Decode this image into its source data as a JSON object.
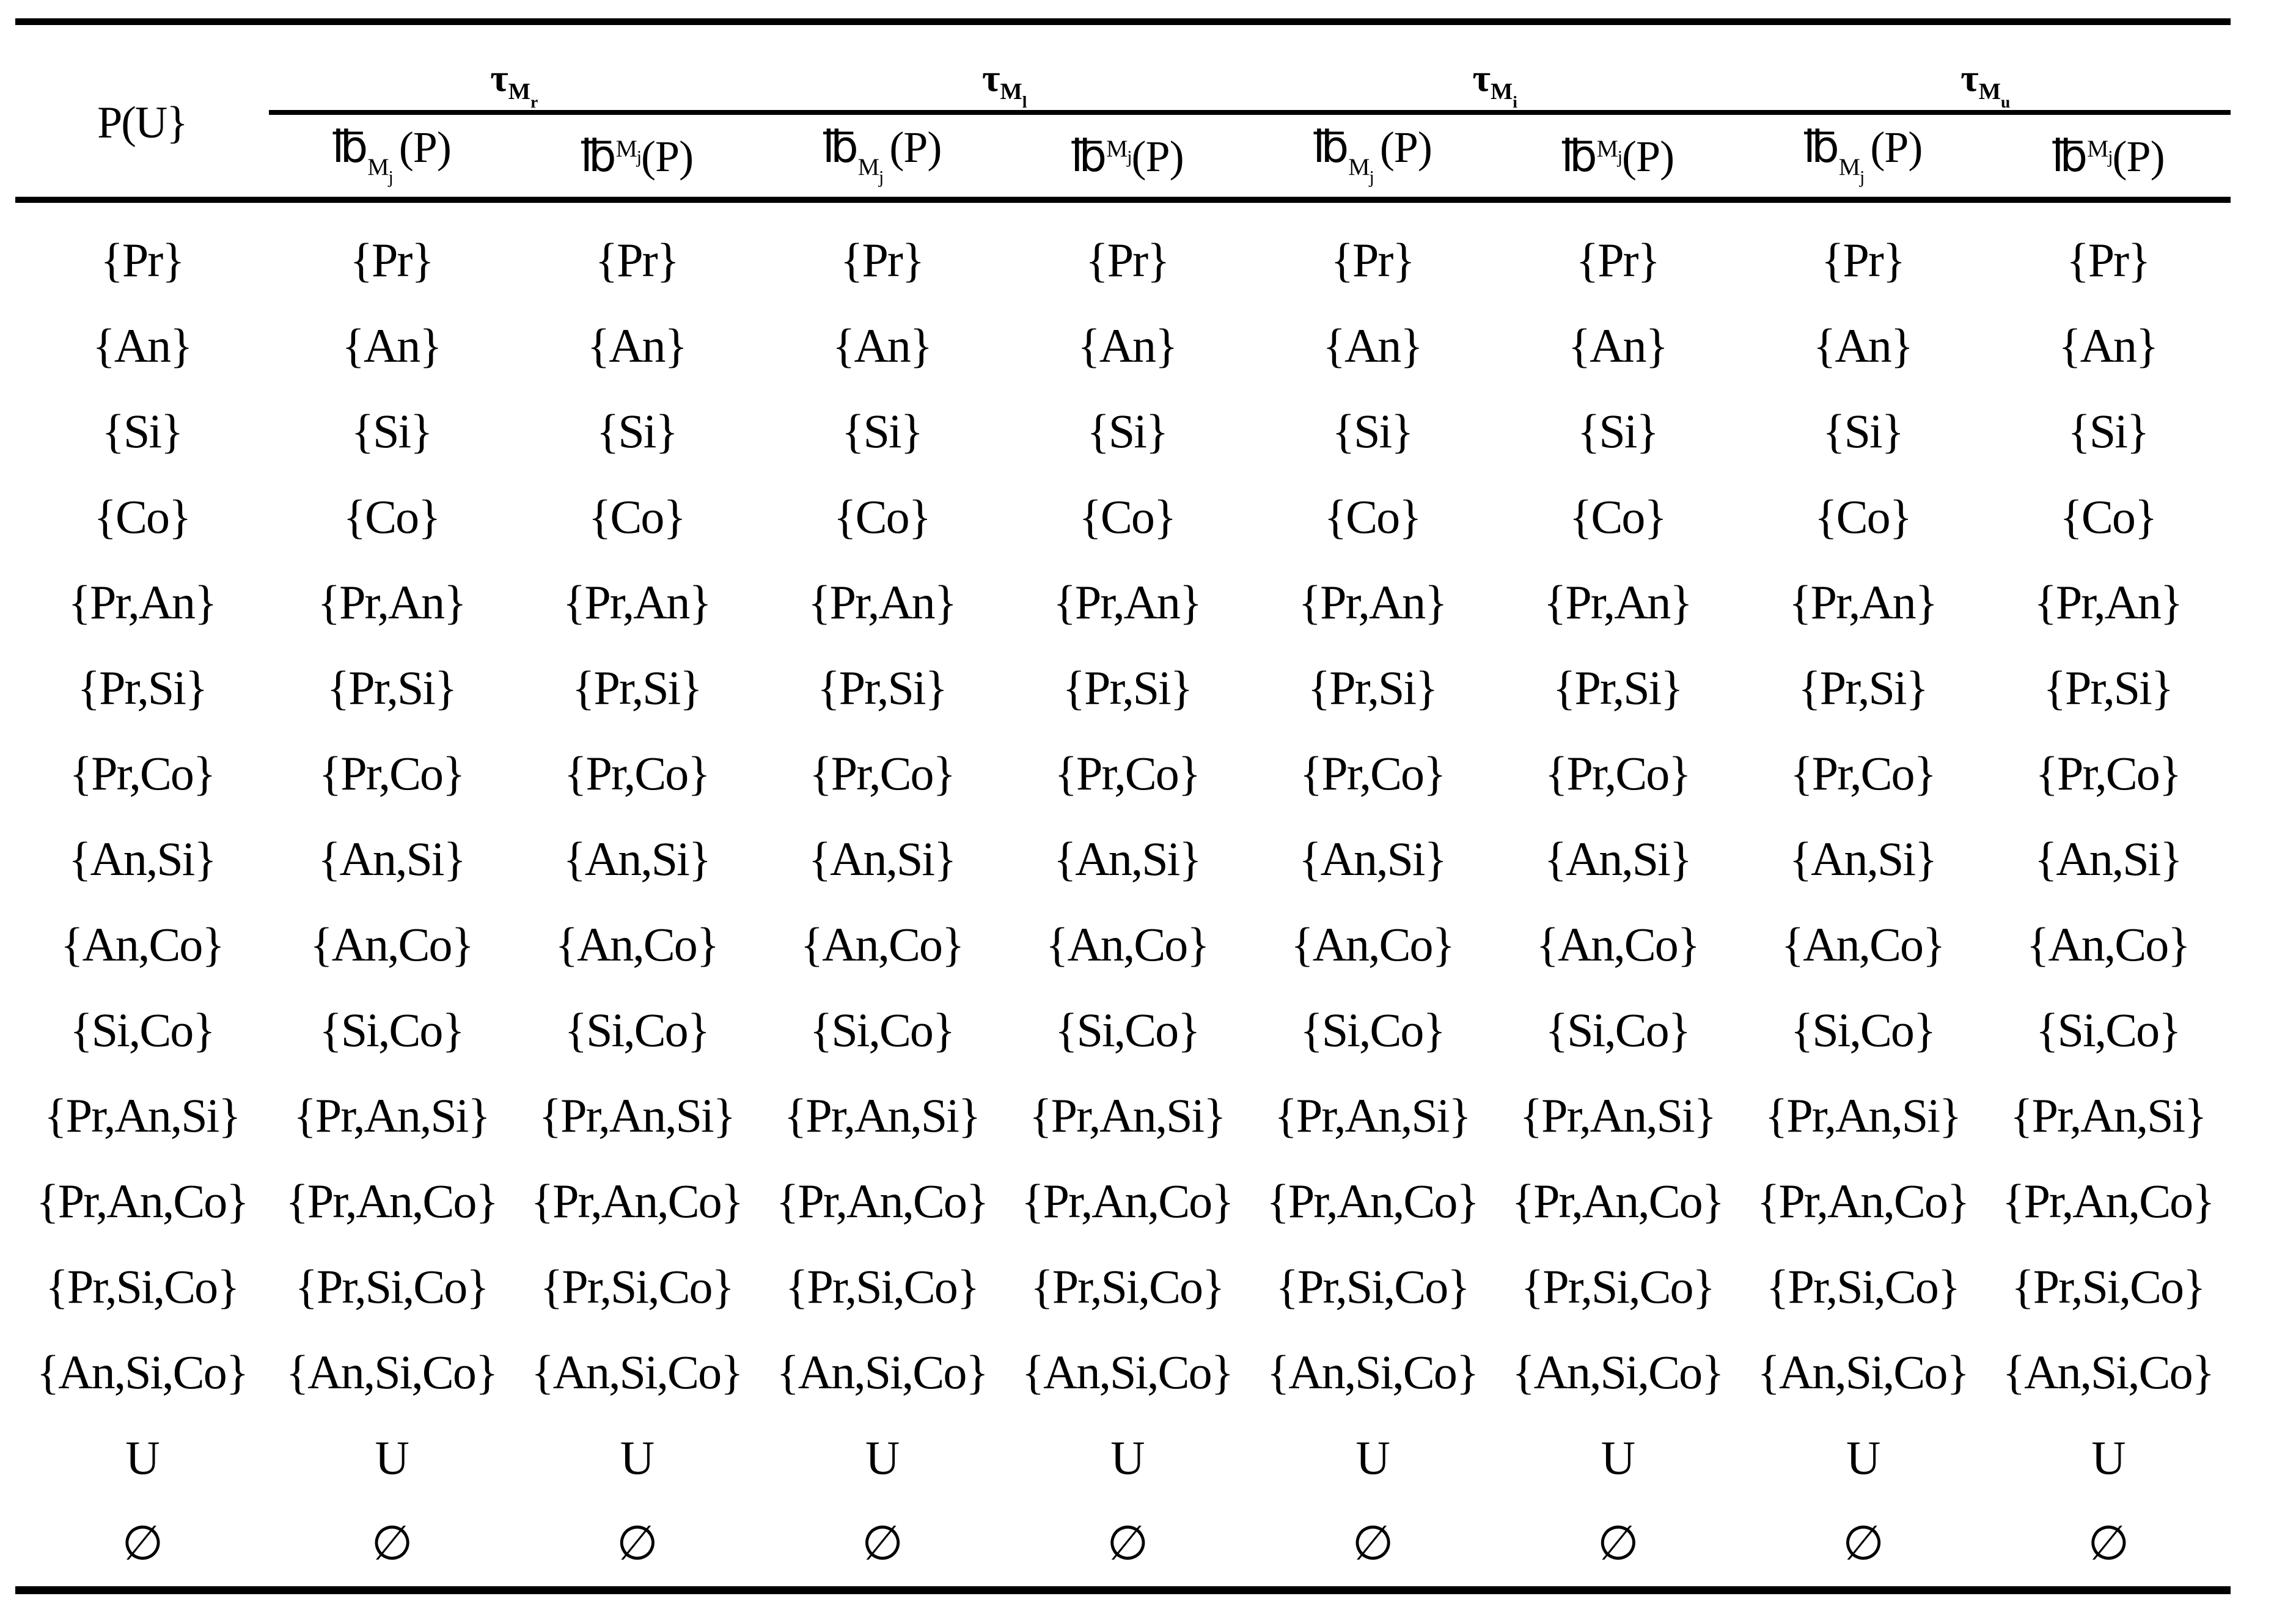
{
  "colors": {
    "background": "#ffffff",
    "text": "#000000",
    "rule": "#000000"
  },
  "table": {
    "corner_header": "P(U}",
    "groups": [
      {
        "tau": "τ",
        "sub": "M",
        "subsub": "r"
      },
      {
        "tau": "τ",
        "sub": "M",
        "subsub": "l"
      },
      {
        "tau": "τ",
        "sub": "M",
        "subsub": "i"
      },
      {
        "tau": "τ",
        "sub": "M",
        "subsub": "u"
      }
    ],
    "col_headers": {
      "lower": {
        "symbol": "℔",
        "script_main": "M",
        "script_sub": "j",
        "arg": "(P)",
        "script_position": "subscript"
      },
      "upper": {
        "symbol": "℔",
        "script_main": "M",
        "script_sub": "j",
        "arg": "(P)",
        "script_position": "superscript"
      }
    },
    "rows": [
      {
        "label": "{Pr}",
        "cells": [
          "{Pr}",
          "{Pr}",
          "{Pr}",
          "{Pr}",
          "{Pr}",
          "{Pr}",
          "{Pr}",
          "{Pr}"
        ]
      },
      {
        "label": "{An}",
        "cells": [
          "{An}",
          "{An}",
          "{An}",
          "{An}",
          "{An}",
          "{An}",
          "{An}",
          "{An}"
        ]
      },
      {
        "label": "{Si}",
        "cells": [
          "{Si}",
          "{Si}",
          "{Si}",
          "{Si}",
          "{Si}",
          "{Si}",
          "{Si}",
          "{Si}"
        ]
      },
      {
        "label": "{Co}",
        "cells": [
          "{Co}",
          "{Co}",
          "{Co}",
          "{Co}",
          "{Co}",
          "{Co}",
          "{Co}",
          "{Co}"
        ]
      },
      {
        "label": "{Pr,An}",
        "cells": [
          "{Pr,An}",
          "{Pr,An}",
          "{Pr,An}",
          "{Pr,An}",
          "{Pr,An}",
          "{Pr,An}",
          "{Pr,An}",
          "{Pr,An}"
        ]
      },
      {
        "label": "{Pr,Si}",
        "cells": [
          "{Pr,Si}",
          "{Pr,Si}",
          "{Pr,Si}",
          "{Pr,Si}",
          "{Pr,Si}",
          "{Pr,Si}",
          "{Pr,Si}",
          "{Pr,Si}"
        ]
      },
      {
        "label": "{Pr,Co}",
        "cells": [
          "{Pr,Co}",
          "{Pr,Co}",
          "{Pr,Co}",
          "{Pr,Co}",
          "{Pr,Co}",
          "{Pr,Co}",
          "{Pr,Co}",
          "{Pr,Co}"
        ]
      },
      {
        "label": "{An,Si}",
        "cells": [
          "{An,Si}",
          "{An,Si}",
          "{An,Si}",
          "{An,Si}",
          "{An,Si}",
          "{An,Si}",
          "{An,Si}",
          "{An,Si}"
        ]
      },
      {
        "label": "{An,Co}",
        "cells": [
          "{An,Co}",
          "{An,Co}",
          "{An,Co}",
          "{An,Co}",
          "{An,Co}",
          "{An,Co}",
          "{An,Co}",
          "{An,Co}"
        ]
      },
      {
        "label": "{Si,Co}",
        "cells": [
          "{Si,Co}",
          "{Si,Co}",
          "{Si,Co}",
          "{Si,Co}",
          "{Si,Co}",
          "{Si,Co}",
          "{Si,Co}",
          "{Si,Co}"
        ]
      },
      {
        "label": "{Pr,An,Si}",
        "cells": [
          "{Pr,An,Si}",
          "{Pr,An,Si}",
          "{Pr,An,Si}",
          "{Pr,An,Si}",
          "{Pr,An,Si}",
          "{Pr,An,Si}",
          "{Pr,An,Si}",
          "{Pr,An,Si}"
        ]
      },
      {
        "label": "{Pr,An,Co}",
        "cells": [
          "{Pr,An,Co}",
          "{Pr,An,Co}",
          "{Pr,An,Co}",
          "{Pr,An,Co}",
          "{Pr,An,Co}",
          "{Pr,An,Co}",
          "{Pr,An,Co}",
          "{Pr,An,Co}"
        ]
      },
      {
        "label": "{Pr,Si,Co}",
        "cells": [
          "{Pr,Si,Co}",
          "{Pr,Si,Co}",
          "{Pr,Si,Co}",
          "{Pr,Si,Co}",
          "{Pr,Si,Co}",
          "{Pr,Si,Co}",
          "{Pr,Si,Co}",
          "{Pr,Si,Co}"
        ]
      },
      {
        "label": "{An,Si,Co}",
        "cells": [
          "{An,Si,Co}",
          "{An,Si,Co}",
          "{An,Si,Co}",
          "{An,Si,Co}",
          "{An,Si,Co}",
          "{An,Si,Co}",
          "{An,Si,Co}",
          "{An,Si,Co}"
        ]
      },
      {
        "label": "U",
        "cells": [
          "U",
          "U",
          "U",
          "U",
          "U",
          "U",
          "U",
          "U"
        ]
      },
      {
        "label": "∅",
        "cells": [
          "∅",
          "∅",
          "∅",
          "∅",
          "∅",
          "∅",
          "∅",
          "∅"
        ]
      }
    ]
  }
}
